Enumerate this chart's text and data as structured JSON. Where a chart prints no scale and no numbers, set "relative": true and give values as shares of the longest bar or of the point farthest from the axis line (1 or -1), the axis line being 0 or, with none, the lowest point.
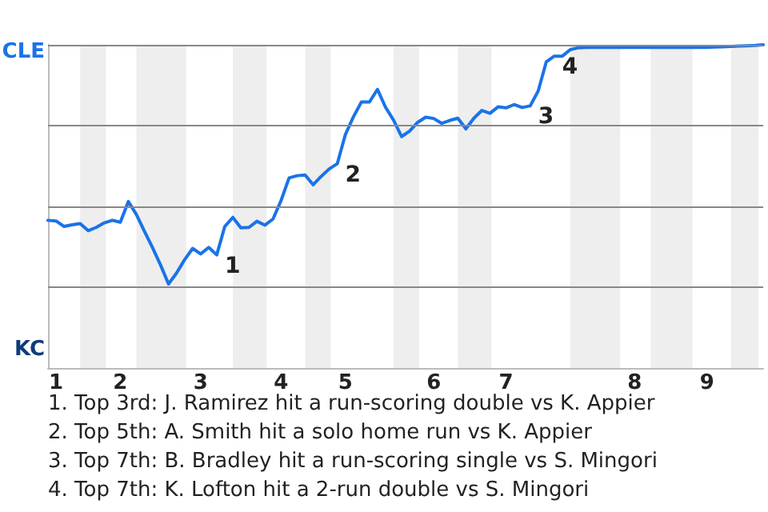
{
  "chart_data": {
    "type": "line",
    "relative": true,
    "categories": [
      null,
      "1",
      null,
      null,
      null,
      null,
      null,
      null,
      null,
      "2",
      null,
      null,
      null,
      null,
      null,
      null,
      null,
      null,
      null,
      "3",
      null,
      null,
      null,
      null,
      null,
      null,
      null,
      null,
      null,
      "4",
      null,
      null,
      null,
      null,
      null,
      null,
      null,
      "5",
      null,
      null,
      null,
      null,
      null,
      null,
      null,
      null,
      null,
      null,
      "6",
      null,
      null,
      null,
      null,
      null,
      null,
      null,
      null,
      "7",
      null,
      null,
      null,
      null,
      null,
      null,
      null,
      null,
      null,
      null,
      null,
      null,
      null,
      null,
      null,
      "8",
      null,
      null,
      null,
      null,
      null,
      null,
      null,
      null,
      "9",
      null,
      null,
      null,
      null,
      null,
      null,
      null
    ],
    "series": [
      {
        "color": "#1a73e8",
        "values": [
          0.457,
          0.455,
          0.438,
          0.443,
          0.447,
          0.425,
          0.435,
          0.449,
          0.457,
          0.451,
          0.515,
          0.475,
          0.423,
          0.373,
          0.319,
          0.26,
          0.294,
          0.335,
          0.37,
          0.353,
          0.373,
          0.35,
          0.438,
          0.466,
          0.434,
          0.435,
          0.454,
          0.442,
          0.461,
          0.518,
          0.588,
          0.595,
          0.597,
          0.567,
          0.593,
          0.616,
          0.632,
          0.722,
          0.777,
          0.823,
          0.823,
          0.862,
          0.807,
          0.767,
          0.716,
          0.733,
          0.76,
          0.776,
          0.772,
          0.757,
          0.766,
          0.773,
          0.74,
          0.773,
          0.797,
          0.788,
          0.808,
          0.805,
          0.815,
          0.806,
          0.811,
          0.857,
          0.947,
          0.965,
          0.965,
          0.985,
          0.991,
          0.992,
          0.992,
          0.992,
          0.992,
          0.992,
          0.992,
          0.992,
          0.992,
          0.992,
          0.992,
          0.992,
          0.992,
          0.992,
          0.992,
          0.992,
          0.992,
          0.993,
          0.994,
          0.995,
          0.996,
          0.997,
          0.998,
          1
        ]
      }
    ],
    "grid": "y",
    "annotations": [
      "CLE",
      "KC",
      "1",
      "2",
      "3",
      "4",
      "1. Top 3rd: J. Ramirez hit a run-scoring double vs K. Appier",
      "2. Top 5th: A. Smith hit a solo home run vs K. Appier",
      "3. Top 7th: B. Bradley hit a run-scoring single vs S. Mingori",
      "4. Top 7th: K. Lofton hit a 2-run double vs S. Mingori"
    ]
  }
}
